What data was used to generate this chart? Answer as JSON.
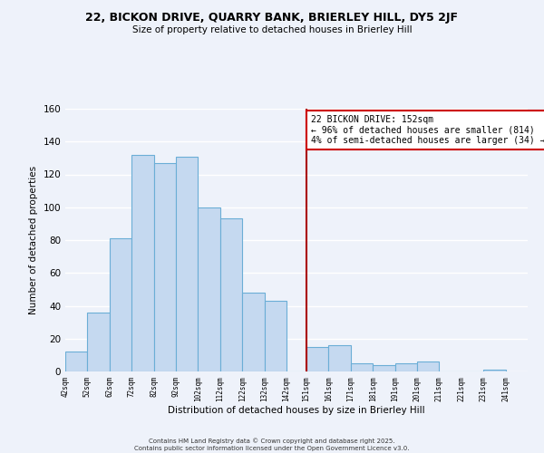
{
  "title_line1": "22, BICKON DRIVE, QUARRY BANK, BRIERLEY HILL, DY5 2JF",
  "title_line2": "Size of property relative to detached houses in Brierley Hill",
  "xlabel": "Distribution of detached houses by size in Brierley Hill",
  "ylabel": "Number of detached properties",
  "bar_left_edges": [
    42,
    52,
    62,
    72,
    82,
    92,
    102,
    112,
    122,
    132,
    142,
    151,
    161,
    171,
    181,
    191,
    201,
    211,
    221,
    231
  ],
  "bar_heights": [
    12,
    36,
    81,
    132,
    127,
    131,
    100,
    93,
    48,
    43,
    0,
    15,
    16,
    5,
    4,
    5,
    6,
    0,
    0,
    1
  ],
  "bar_widths": [
    10,
    10,
    10,
    10,
    10,
    10,
    10,
    10,
    10,
    10,
    9,
    10,
    10,
    10,
    10,
    10,
    10,
    10,
    10,
    10
  ],
  "bar_color": "#c5d9f0",
  "bar_edge_color": "#6baed6",
  "vline_x": 151,
  "vline_color": "#aa0000",
  "annotation_text_line1": "22 BICKON DRIVE: 152sqm",
  "annotation_text_line2": "← 96% of detached houses are smaller (814)",
  "annotation_text_line3": "4% of semi-detached houses are larger (34) →",
  "xlim": [
    42,
    251
  ],
  "ylim": [
    0,
    160
  ],
  "yticks": [
    0,
    20,
    40,
    60,
    80,
    100,
    120,
    140,
    160
  ],
  "xtick_labels": [
    "42sqm",
    "52sqm",
    "62sqm",
    "72sqm",
    "82sqm",
    "92sqm",
    "102sqm",
    "112sqm",
    "122sqm",
    "132sqm",
    "142sqm",
    "151sqm",
    "161sqm",
    "171sqm",
    "181sqm",
    "191sqm",
    "201sqm",
    "211sqm",
    "221sqm",
    "231sqm",
    "241sqm"
  ],
  "xtick_positions": [
    42,
    52,
    62,
    72,
    82,
    92,
    102,
    112,
    122,
    132,
    142,
    151,
    161,
    171,
    181,
    191,
    201,
    211,
    221,
    231,
    241
  ],
  "background_color": "#eef2fa",
  "grid_color": "#ffffff",
  "footer_line1": "Contains HM Land Registry data © Crown copyright and database right 2025.",
  "footer_line2": "Contains public sector information licensed under the Open Government Licence v3.0."
}
